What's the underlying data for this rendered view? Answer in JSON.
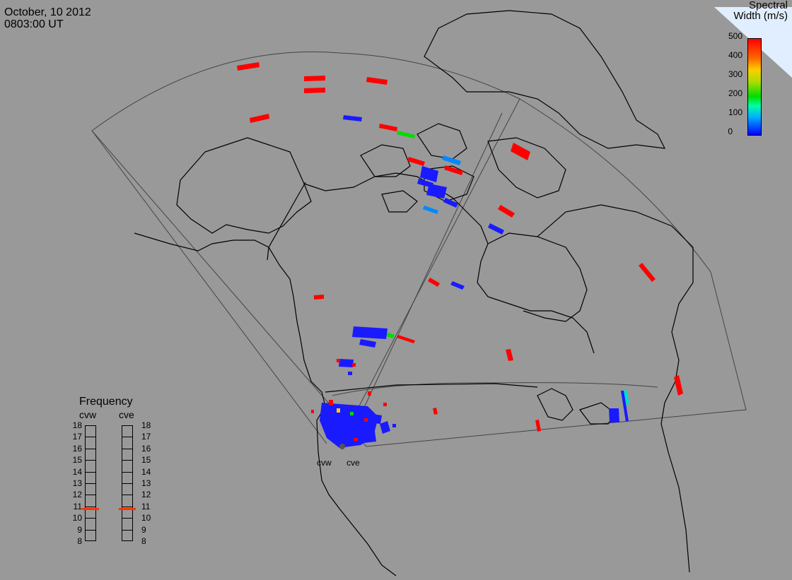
{
  "header": {
    "date": "October, 10 2012",
    "time": "0803:00 UT"
  },
  "colorbar": {
    "title_line1": "Spectral",
    "title_line2": "Width (m/s)",
    "ticks": [
      "500",
      "400",
      "300",
      "200",
      "100",
      "0"
    ],
    "colors": {
      "high": "#ff0000",
      "mid": "#00dd00",
      "low": "#0000ff"
    }
  },
  "frequency": {
    "title": "Frequency",
    "radars": [
      "cvw",
      "cve"
    ],
    "ticks": [
      "18",
      "17",
      "16",
      "15",
      "14",
      "13",
      "12",
      "11",
      "10",
      "9",
      "8"
    ],
    "cvw_mhz": 10.8,
    "cve_mhz": 10.8
  },
  "sites": {
    "west": "cvw",
    "east": "cve"
  }
}
